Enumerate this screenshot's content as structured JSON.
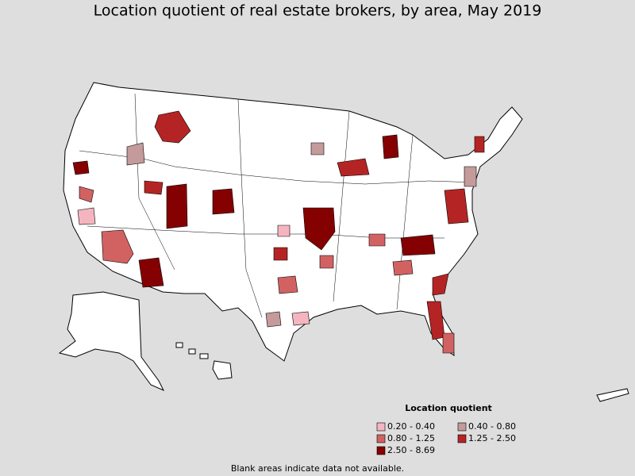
{
  "title": "Location quotient of real estate brokers, by area, May 2019",
  "legend": {
    "title": "Location quotient",
    "items": [
      {
        "label": "0.20 - 0.40",
        "color": "#f5b5c0"
      },
      {
        "label": "0.40 - 0.80",
        "color": "#c49a9a"
      },
      {
        "label": "0.80 - 1.25",
        "color": "#d26262"
      },
      {
        "label": "1.25 - 2.50",
        "color": "#b52424"
      },
      {
        "label": "2.50 - 8.69",
        "color": "#850000"
      }
    ]
  },
  "footnote": "Blank areas indicate data not available."
}
